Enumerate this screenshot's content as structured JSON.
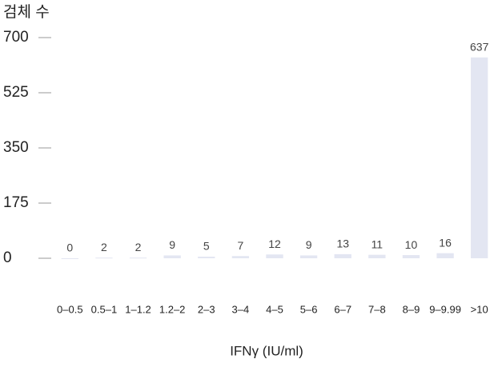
{
  "chart_data": {
    "type": "bar",
    "y_label": "검체 수",
    "x_label": "IFNγ (IU/ml)",
    "categories": [
      "0–0.5",
      "0.5–1",
      "1–1.2",
      "1.2–2",
      "2–3",
      "3–4",
      "4–5",
      "5–6",
      "6–7",
      "7–8",
      "8–9",
      "9–9.99",
      ">10"
    ],
    "values": [
      0,
      2,
      2,
      9,
      5,
      7,
      12,
      9,
      13,
      11,
      10,
      16,
      637
    ],
    "color": "#e3e6f2",
    "ylim": [
      0,
      700
    ],
    "yticks": [
      0,
      175,
      350,
      525,
      700
    ],
    "grid": false
  }
}
